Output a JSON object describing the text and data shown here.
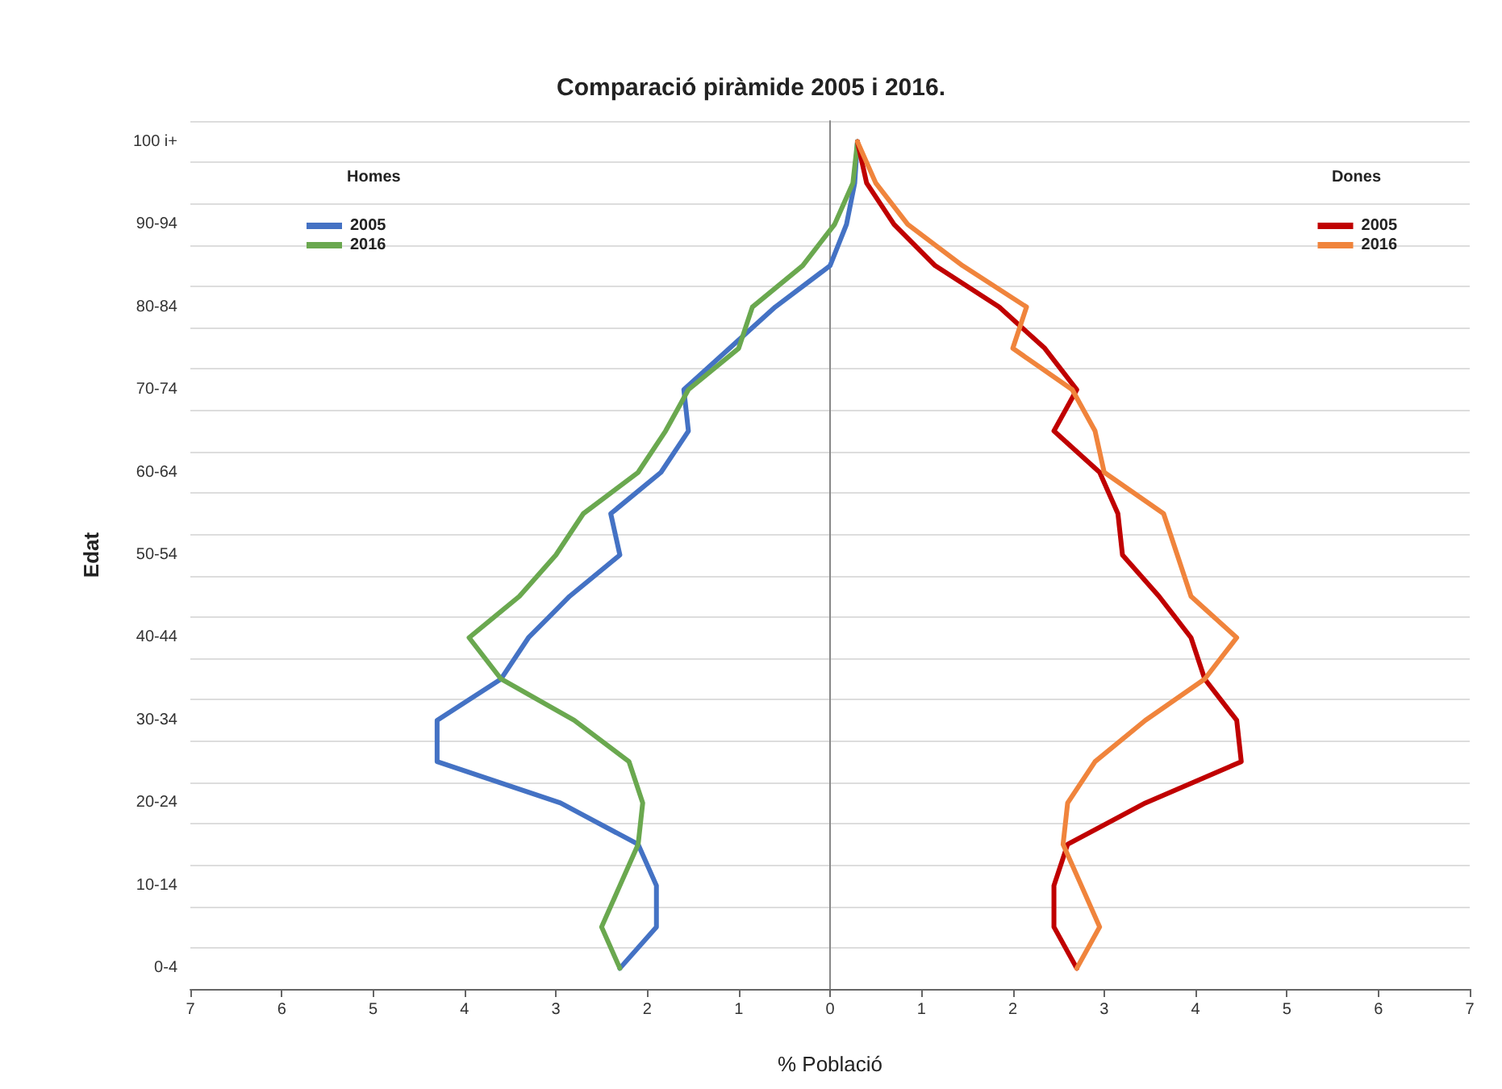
{
  "chart_data": {
    "type": "line",
    "orientation": "horizontal",
    "title": "Comparació piràmide 2005 i 2016.",
    "xlabel": "% Població",
    "ylabel": "Edat",
    "categories": [
      "100 i+",
      null,
      "90-94",
      null,
      "80-84",
      null,
      "70-74",
      null,
      "60-64",
      null,
      "50-54",
      null,
      "40-44",
      null,
      "30-34",
      null,
      "20-24",
      null,
      "10-14",
      null,
      "0-4"
    ],
    "series": [
      {
        "name": "2005",
        "color": "#4472c4",
        "values": [
          0.3,
          0.27,
          0.18,
          0,
          -0.6,
          -1.1,
          -1.6,
          -1.55,
          -1.85,
          -2.4,
          -2.3,
          -2.85,
          -3.3,
          -3.6,
          -4.3,
          -4.3,
          -2.95,
          -2.1,
          -1.9,
          -1.9,
          -2.3
        ]
      },
      {
        "name": "2016",
        "color": "#6aa84f",
        "values": [
          0.3,
          0.25,
          0.05,
          -0.3,
          -0.85,
          -1,
          -1.55,
          -1.8,
          -2.1,
          -2.7,
          -3,
          -3.4,
          -3.95,
          -3.6,
          -2.8,
          -2.2,
          -2.05,
          -2.1,
          -2.3,
          -2.5,
          -2.3
        ]
      },
      {
        "name": "2005",
        "color": "#c00000",
        "values": [
          0.3,
          0.4,
          0.7,
          1.15,
          1.85,
          2.35,
          2.7,
          2.45,
          2.95,
          3.15,
          3.2,
          3.6,
          3.95,
          4.1,
          4.45,
          4.5,
          3.45,
          2.6,
          2.45,
          2.45,
          2.7
        ]
      },
      {
        "name": "2016",
        "color": "#f0843c",
        "values": [
          0.3,
          0.5,
          0.85,
          1.45,
          2.15,
          2,
          2.65,
          2.9,
          3,
          3.65,
          3.8,
          3.95,
          4.45,
          4.1,
          3.45,
          2.9,
          2.6,
          2.55,
          2.75,
          2.95,
          2.7
        ]
      }
    ],
    "annotations": [
      "Homes",
      "Dones"
    ],
    "xlim": [
      -7,
      7
    ],
    "xticks": [
      {
        "value": -7,
        "label": "7"
      },
      {
        "value": -6,
        "label": "6"
      },
      {
        "value": -5,
        "label": "5"
      },
      {
        "value": -4,
        "label": "4"
      },
      {
        "value": -3,
        "label": "3"
      },
      {
        "value": -2,
        "label": "2"
      },
      {
        "value": -1,
        "label": "1"
      },
      0,
      1,
      2,
      3,
      4,
      5,
      6,
      7
    ],
    "grid": "y",
    "legend": "top",
    "marker": "none",
    "line_style": "solid"
  }
}
